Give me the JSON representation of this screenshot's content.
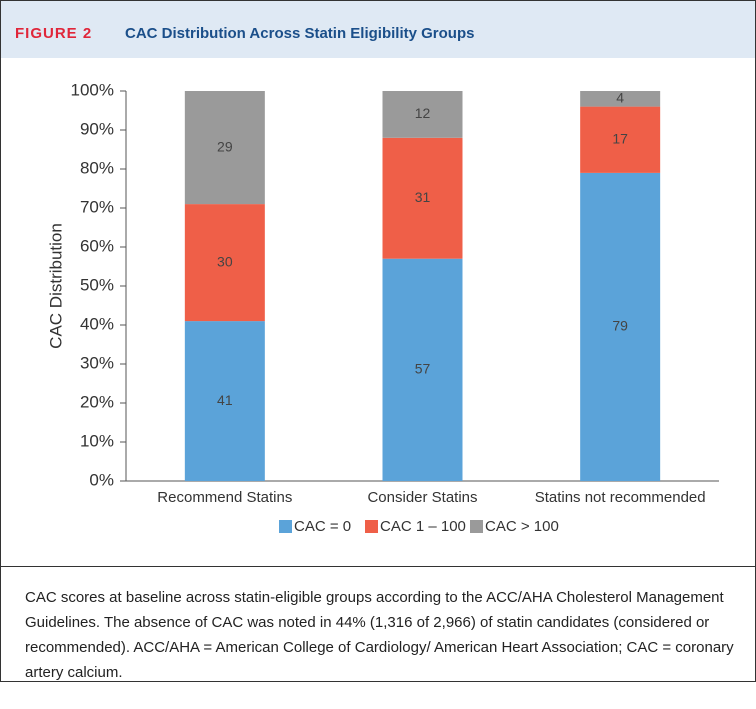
{
  "figure_label": "FIGURE 2",
  "chart_data": {
    "type": "stacked_bar",
    "title": "CAC Distribution Across Statin Eligibility Groups",
    "y_label": "CAC Distribution",
    "categories": [
      "Recommend Statins",
      "Consider Statins",
      "Statins not recommended"
    ],
    "series": [
      {
        "name": "CAC = 0",
        "color": "#5ba3d9",
        "values": [
          41,
          57,
          79
        ]
      },
      {
        "name": "CAC 1 – 100",
        "color": "#ef5f48",
        "values": [
          30,
          31,
          17
        ]
      },
      {
        "name": "CAC > 100",
        "color": "#9a9a9a",
        "values": [
          29,
          12,
          4
        ]
      }
    ],
    "ylim": [
      0,
      100
    ],
    "yticks": [
      {
        "value": 0,
        "label": "0%"
      },
      {
        "value": 10,
        "label": "10%"
      },
      {
        "value": 20,
        "label": "20%"
      },
      {
        "value": 30,
        "label": "30%"
      },
      {
        "value": 40,
        "label": "40%"
      },
      {
        "value": 50,
        "label": "50%"
      },
      {
        "value": 60,
        "label": "60%"
      },
      {
        "value": 70,
        "label": "70%"
      },
      {
        "value": 80,
        "label": "80%"
      },
      {
        "value": 90,
        "label": "90%"
      },
      {
        "value": 100,
        "label": "100%"
      }
    ],
    "grid": false,
    "legend": "bottom"
  },
  "caption": "CAC scores at baseline across statin-eligible groups according to the ACC/AHA Cholesterol Management Guidelines. The absence of CAC was noted in 44% (1,316 of 2,966) of statin candidates (considered or recommended). ACC/AHA = American College of Cardiology/ American Heart Association; CAC = coronary artery calcium."
}
